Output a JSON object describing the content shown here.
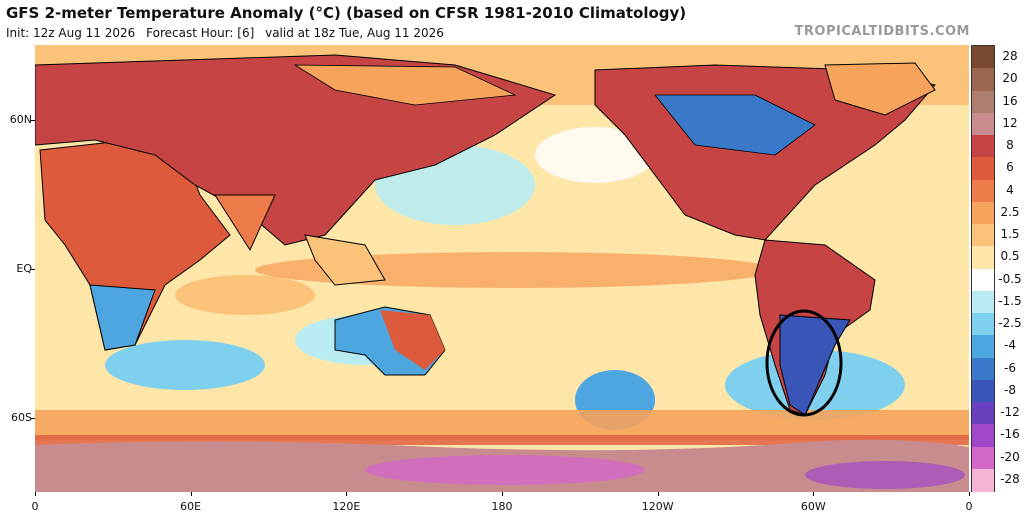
{
  "header": {
    "title": "GFS 2-meter Temperature Anomaly (°C) (based on CFSR 1981-2010 Climatology)",
    "init": "Init: 12z Aug 11 2026",
    "forecast_hour": "Forecast Hour: [6]",
    "valid": "valid at 18z Tue, Aug 11 2026",
    "watermark": "TROPICALTIDBITS.COM"
  },
  "map": {
    "lat_labels": [
      {
        "text": "60N",
        "lat": 60
      },
      {
        "text": "EQ",
        "lat": 0
      },
      {
        "text": "60S",
        "lat": -60
      }
    ],
    "lon_labels": [
      {
        "text": "0",
        "lon": 0
      },
      {
        "text": "60E",
        "lon": 60
      },
      {
        "text": "120E",
        "lon": 120
      },
      {
        "text": "180",
        "lon": 180
      },
      {
        "text": "120W",
        "lon": 240
      },
      {
        "text": "60W",
        "lon": 300
      },
      {
        "text": "0",
        "lon": 360
      }
    ],
    "lat_range": [
      -90,
      90
    ],
    "lon_range": [
      0,
      360
    ],
    "highlight_circle": {
      "region": "southern South America",
      "center_lat": -40,
      "center_lon": 294
    }
  },
  "legend": {
    "bins": [
      {
        "label": "28",
        "color": "#7a4a30"
      },
      {
        "label": "20",
        "color": "#9a6650"
      },
      {
        "label": "16",
        "color": "#b07e70"
      },
      {
        "label": "12",
        "color": "#c88c8e"
      },
      {
        "label": "8",
        "color": "#c64444"
      },
      {
        "label": "6",
        "color": "#dd5a3c"
      },
      {
        "label": "4",
        "color": "#ee7c4a"
      },
      {
        "label": "2.5",
        "color": "#f6a35c"
      },
      {
        "label": "1.5",
        "color": "#fbc37a"
      },
      {
        "label": "0.5",
        "color": "#fde6a8"
      },
      {
        "label": "-0.5",
        "color": "#ffffff"
      },
      {
        "label": "-1.5",
        "color": "#b8ecf2"
      },
      {
        "label": "-2.5",
        "color": "#7fd0ee"
      },
      {
        "label": "-4",
        "color": "#4ea6e0"
      },
      {
        "label": "-6",
        "color": "#3a78c9"
      },
      {
        "label": "-8",
        "color": "#3a55b8"
      },
      {
        "label": "-12",
        "color": "#6a40c0"
      },
      {
        "label": "-16",
        "color": "#a048c8"
      },
      {
        "label": "-20",
        "color": "#d468c8"
      },
      {
        "label": "-28",
        "color": "#f4b4d4"
      }
    ]
  }
}
